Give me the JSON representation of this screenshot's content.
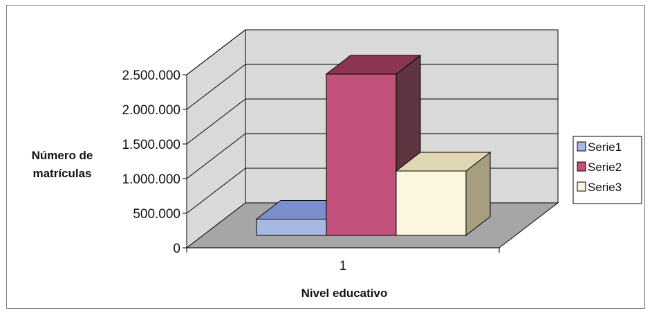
{
  "chart_data": {
    "type": "bar",
    "variant": "3d-clustered-column",
    "categories": [
      "1"
    ],
    "series": [
      {
        "name": "Serie1",
        "values": [
          235000
        ],
        "color": "#a7b8e3",
        "top_color": "#7b8fcc",
        "side_color": "#6677aa"
      },
      {
        "name": "Serie2",
        "values": [
          2330000
        ],
        "color": "#c2517b",
        "top_color": "#8b3553",
        "side_color": "#5e3540"
      },
      {
        "name": "Serie3",
        "values": [
          930000
        ],
        "color": "#fdf6df",
        "top_color": "#e0d6b4",
        "side_color": "#a59e7f"
      }
    ],
    "y_ticks": [
      "0",
      "500.000",
      "1.000.000",
      "1.500.000",
      "2.000.000",
      "2.500.000"
    ],
    "ylim": [
      0,
      2500000
    ],
    "xlabel_line": "Nivel educativo",
    "ylabel_lines": [
      "Número de",
      "matrículas"
    ],
    "grid": true,
    "legend_position": "right",
    "wall_color": "#d9d9d9",
    "floor_color": "#a6a6a6"
  }
}
